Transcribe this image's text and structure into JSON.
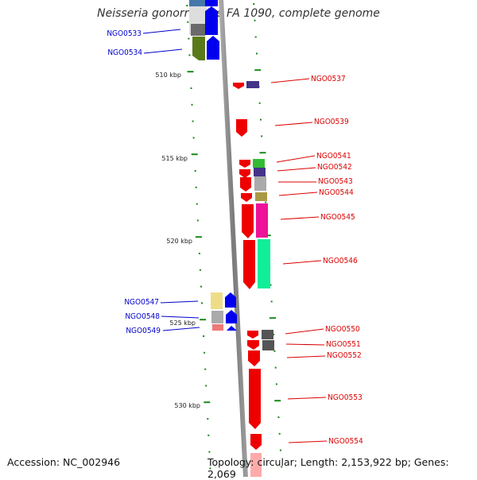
{
  "title": "Neisseria gonorrhoeae FA 1090, complete genome",
  "footer": {
    "accession": "Accession: NC_002946",
    "topology": "Topology: circular; Length: 2,153,922 bp; Genes: 2,069"
  },
  "colors": {
    "left_label": "#0000cc",
    "right_label": "#dd0000",
    "tick": "#1a8a1a",
    "axis": "#808080"
  },
  "scale_labels": [
    "510 kbp",
    "515 kbp",
    "520 kbp",
    "525 kbp",
    "530 kbp"
  ],
  "left_genes": [
    {
      "label": "NGO0533",
      "colors": [
        "#6a6a6a",
        "#0000ee"
      ]
    },
    {
      "label": "NGO0534",
      "colors": [
        "#5a7a1a",
        "#0000ee"
      ]
    },
    {
      "label": "NGO0547",
      "colors": [
        "#eedd88",
        "#0000ee"
      ]
    },
    {
      "label": "NGO0548",
      "colors": [
        "#aaaaaa",
        "#0000ee"
      ]
    },
    {
      "label": "NGO0549",
      "colors": [
        "#ee7777",
        "#0000ee"
      ]
    }
  ],
  "right_genes": [
    {
      "label": "NGO0537",
      "colors": [
        "#ee0000",
        "#443388"
      ]
    },
    {
      "label": "NGO0539",
      "colors": [
        "#ee0000"
      ]
    },
    {
      "label": "NGO0541",
      "colors": [
        "#ee0000",
        "#33bb33"
      ]
    },
    {
      "label": "NGO0542",
      "colors": [
        "#ee0000",
        "#443388"
      ]
    },
    {
      "label": "NGO0543",
      "colors": [
        "#ee0000",
        "#aaaaaa"
      ]
    },
    {
      "label": "NGO0544",
      "colors": [
        "#ee0000",
        "#aa9944"
      ]
    },
    {
      "label": "NGO0545",
      "colors": [
        "#ee0000",
        "#ee1199"
      ]
    },
    {
      "label": "NGO0546",
      "colors": [
        "#ee0000",
        "#11ee99"
      ]
    },
    {
      "label": "NGO0550",
      "colors": [
        "#ee0000",
        "#555555"
      ]
    },
    {
      "label": "NGO0551",
      "colors": [
        "#ee0000",
        "#555555"
      ]
    },
    {
      "label": "NGO0552",
      "colors": [
        "#ee0000"
      ]
    },
    {
      "label": "NGO0553",
      "colors": [
        "#ee0000"
      ]
    },
    {
      "label": "NGO0554",
      "colors": [
        "#ee0000",
        "#ffaaaa"
      ]
    }
  ]
}
